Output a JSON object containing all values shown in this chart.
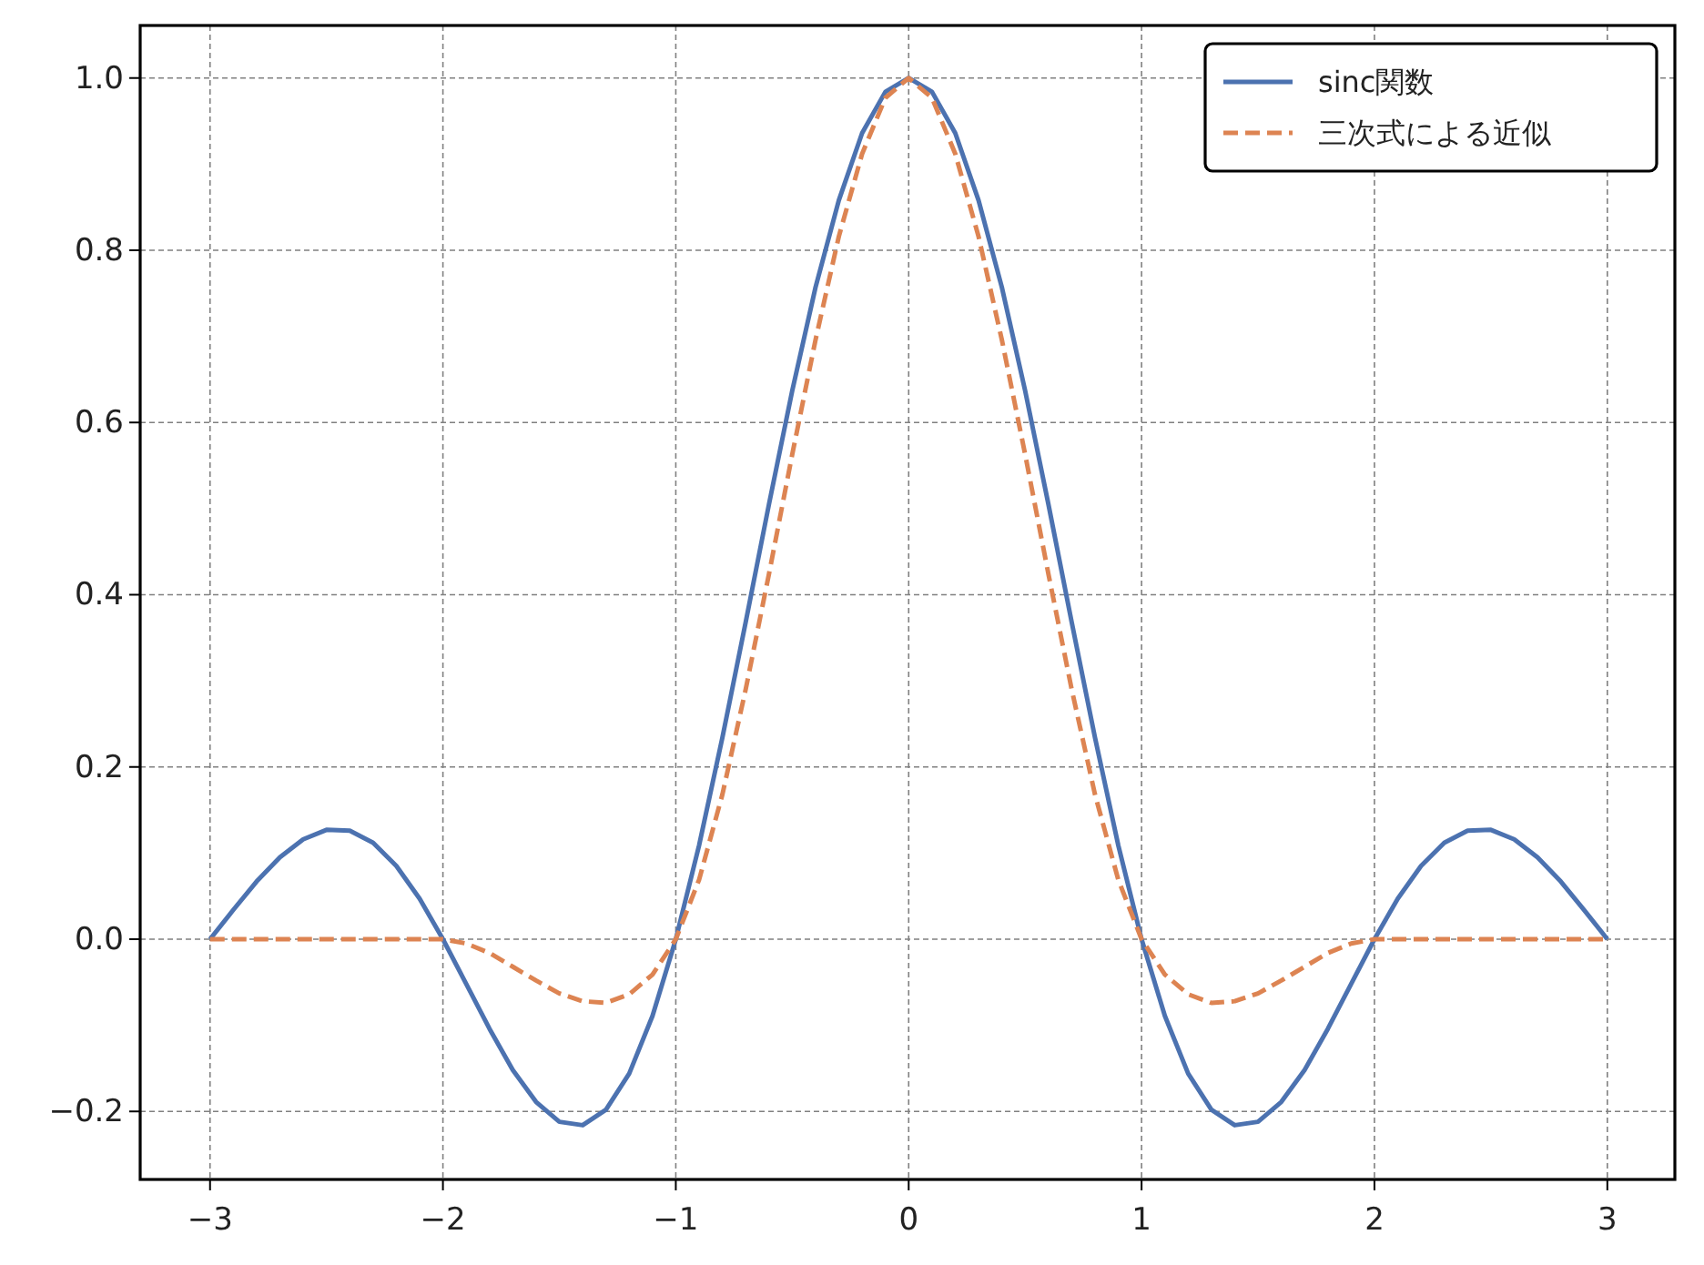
{
  "chart_data": {
    "type": "line",
    "x": [
      -3,
      -2.9,
      -2.8,
      -2.7,
      -2.6,
      -2.5,
      -2.4,
      -2.3,
      -2.2,
      -2.1,
      -2,
      -1.9,
      -1.8,
      -1.7,
      -1.6,
      -1.5,
      -1.4,
      -1.3,
      -1.2,
      -1.1,
      -1,
      -0.9,
      -0.8,
      -0.7,
      -0.6,
      -0.5,
      -0.4,
      -0.3,
      -0.2,
      -0.1,
      0,
      0.1,
      0.2,
      0.3,
      0.4,
      0.5,
      0.6,
      0.7,
      0.8,
      0.9,
      1,
      1.1,
      1.2,
      1.3,
      1.4,
      1.5,
      1.6,
      1.7,
      1.8,
      1.9,
      2,
      2.1,
      2.2,
      2.3,
      2.4,
      2.5,
      2.6,
      2.7,
      2.8,
      2.9,
      3
    ],
    "series": [
      {
        "name": "sinc関数",
        "color": "#4c72b0",
        "line_style": "solid",
        "values": [
          0,
          0.034,
          0.067,
          0.095,
          0.116,
          0.127,
          0.126,
          0.112,
          0.085,
          0.047,
          0,
          -0.052,
          -0.104,
          -0.152,
          -0.189,
          -0.212,
          -0.216,
          -0.198,
          -0.156,
          -0.089,
          0,
          0.109,
          0.234,
          0.368,
          0.505,
          0.637,
          0.757,
          0.858,
          0.936,
          0.984,
          1,
          0.984,
          0.936,
          0.858,
          0.757,
          0.637,
          0.505,
          0.368,
          0.234,
          0.109,
          0,
          -0.089,
          -0.156,
          -0.198,
          -0.216,
          -0.212,
          -0.189,
          -0.152,
          -0.104,
          -0.052,
          0,
          0.047,
          0.085,
          0.112,
          0.126,
          0.127,
          0.116,
          0.095,
          0.067,
          0.034,
          0
        ]
      },
      {
        "name": "三次式による近似",
        "color": "#dd8452",
        "line_style": "dashed",
        "values": [
          0,
          0,
          0,
          0,
          0,
          0,
          0,
          0,
          0,
          0,
          0,
          -0.005,
          -0.016,
          -0.032,
          -0.048,
          -0.063,
          -0.072,
          -0.074,
          -0.064,
          -0.041,
          0,
          0.069,
          0.168,
          0.29,
          0.424,
          0.563,
          0.696,
          0.816,
          0.912,
          0.977,
          1,
          0.977,
          0.912,
          0.816,
          0.696,
          0.563,
          0.424,
          0.29,
          0.168,
          0.069,
          0,
          -0.041,
          -0.064,
          -0.074,
          -0.072,
          -0.063,
          -0.048,
          -0.032,
          -0.016,
          -0.005,
          0,
          0,
          0,
          0,
          0,
          0,
          0,
          0,
          0,
          0,
          0
        ]
      }
    ],
    "xlim": [
      -3.3,
      3.29
    ],
    "ylim": [
      -0.279,
      1.061
    ],
    "xticks": [
      {
        "value": -3,
        "label": "−3"
      },
      {
        "value": -2,
        "label": "−2"
      },
      {
        "value": -1,
        "label": "−1"
      },
      0,
      1,
      2,
      3
    ],
    "yticks": [
      {
        "value": -0.2,
        "label": "−0.2"
      },
      {
        "value": 0,
        "label": "0.0"
      },
      {
        "value": 0.2,
        "label": "0.2"
      },
      {
        "value": 0.4,
        "label": "0.4"
      },
      {
        "value": 0.6,
        "label": "0.6"
      },
      {
        "value": 0.8,
        "label": "0.8"
      },
      {
        "value": 1,
        "label": "1.0"
      }
    ],
    "grid": true,
    "legend": "top right"
  }
}
